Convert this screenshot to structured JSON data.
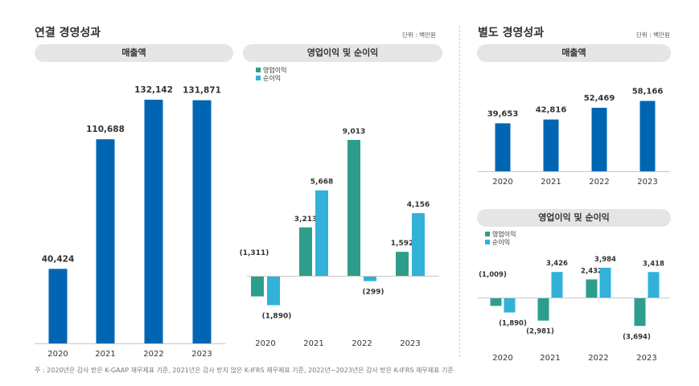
{
  "colors": {
    "revenue": "#0066b3",
    "operating": "#2e9e8c",
    "net": "#32b1d9"
  },
  "left": {
    "title": "연결 경영성과",
    "unit": "단위 : 백만원",
    "revenue_title": "매출액",
    "profit_title": "영업이익 및 순이익"
  },
  "right": {
    "title": "별도 경영성과",
    "unit": "단위 : 백만원",
    "revenue_title": "매출액",
    "profit_title": "영업이익 및 순이익"
  },
  "footnote": "주 : 2020년은 감사 받은 K-GAAP 재무제표 기준, 2021년은 감사 받지 않은 K-IFRS 재무제표 기준, 2022년~2023년은 감사 받은 K-IFRS 재무제표 기준",
  "chart_data": [
    {
      "id": "consolidated-revenue",
      "type": "bar",
      "title": "매출액",
      "categories": [
        "2020",
        "2021",
        "2022",
        "2023"
      ],
      "values": [
        40424,
        110688,
        132142,
        131871
      ],
      "labels": [
        "40,424",
        "110,688",
        "132,142",
        "131,871"
      ],
      "ylim": [
        0,
        140000
      ]
    },
    {
      "id": "consolidated-profit",
      "type": "bar",
      "title": "영업이익 및 순이익",
      "categories": [
        "2020",
        "2021",
        "2022",
        "2023"
      ],
      "series": [
        {
          "name": "영업이익",
          "values": [
            -1311,
            3213,
            9013,
            1592
          ],
          "labels": [
            "(1,311)",
            "3,213",
            "9,013",
            "1,592"
          ]
        },
        {
          "name": "순이익",
          "values": [
            -1890,
            5668,
            -299,
            4156
          ],
          "labels": [
            "(1,890)",
            "5,668",
            "(299)",
            "4,156"
          ]
        }
      ],
      "ylim": [
        -3000,
        10000
      ]
    },
    {
      "id": "separate-revenue",
      "type": "bar",
      "title": "매출액",
      "categories": [
        "2020",
        "2021",
        "2022",
        "2023"
      ],
      "values": [
        39653,
        42816,
        52469,
        58166
      ],
      "labels": [
        "39,653",
        "42,816",
        "52,469",
        "58,166"
      ],
      "ylim": [
        0,
        60000
      ]
    },
    {
      "id": "separate-profit",
      "type": "bar",
      "title": "영업이익 및 순이익",
      "categories": [
        "2020",
        "2021",
        "2022",
        "2023"
      ],
      "series": [
        {
          "name": "영업이익",
          "values": [
            -1009,
            -2981,
            2432,
            -3694
          ],
          "labels": [
            "(1,009)",
            "(2,981)",
            "2,432",
            "(3,694)"
          ]
        },
        {
          "name": "순이익",
          "values": [
            -1890,
            3426,
            3984,
            3418
          ],
          "labels": [
            "(1,890)",
            "3,426",
            "3,984",
            "3,418"
          ]
        }
      ],
      "ylim": [
        -4000,
        4500
      ]
    }
  ]
}
